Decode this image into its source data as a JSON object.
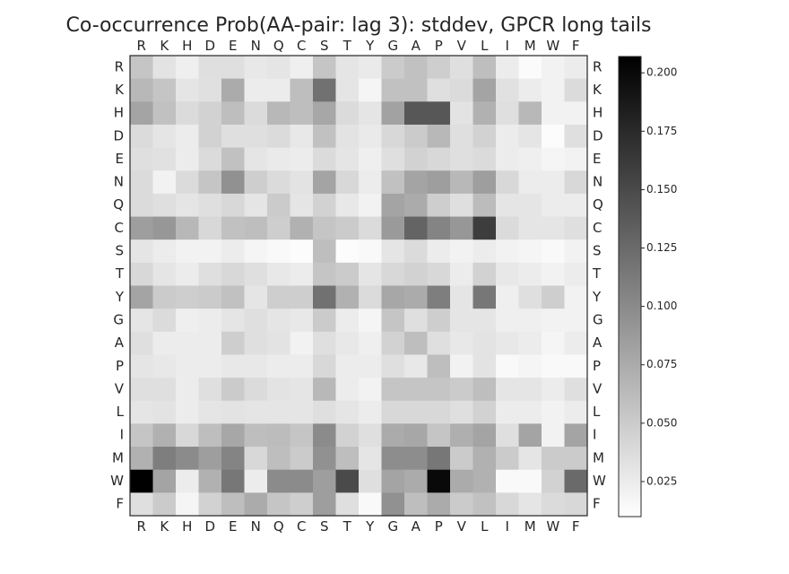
{
  "chart_data": {
    "type": "heatmap",
    "title": "Co-occurrence Prob(AA-pair: lag 3): stddev, GPCR long tails",
    "x_labels": [
      "R",
      "K",
      "H",
      "D",
      "E",
      "N",
      "Q",
      "C",
      "S",
      "T",
      "Y",
      "G",
      "A",
      "P",
      "V",
      "L",
      "I",
      "M",
      "W",
      "F"
    ],
    "y_labels": [
      "R",
      "K",
      "H",
      "D",
      "E",
      "N",
      "Q",
      "C",
      "S",
      "T",
      "Y",
      "G",
      "A",
      "P",
      "V",
      "L",
      "I",
      "M",
      "W",
      "F"
    ],
    "colorbar": {
      "min": 0.01,
      "max": 0.207,
      "ticks": [
        0.025,
        0.05,
        0.075,
        0.1,
        0.125,
        0.15,
        0.175,
        0.2
      ],
      "tick_labels": [
        "0.025",
        "0.050",
        "0.075",
        "0.100",
        "0.125",
        "0.150",
        "0.175",
        "0.200"
      ],
      "colormap": "greys"
    },
    "values": [
      [
        0.055,
        0.032,
        0.022,
        0.035,
        0.035,
        0.028,
        0.03,
        0.022,
        0.055,
        0.03,
        0.026,
        0.05,
        0.058,
        0.048,
        0.035,
        0.06,
        0.025,
        0.013,
        0.02,
        0.025
      ],
      [
        0.065,
        0.055,
        0.03,
        0.034,
        0.075,
        0.025,
        0.025,
        0.06,
        0.12,
        0.03,
        0.018,
        0.058,
        0.058,
        0.035,
        0.038,
        0.08,
        0.033,
        0.025,
        0.02,
        0.038
      ],
      [
        0.08,
        0.058,
        0.038,
        0.045,
        0.06,
        0.038,
        0.065,
        0.06,
        0.078,
        0.038,
        0.03,
        0.082,
        0.14,
        0.14,
        0.032,
        0.07,
        0.035,
        0.065,
        0.02,
        0.02
      ],
      [
        0.038,
        0.03,
        0.025,
        0.045,
        0.035,
        0.035,
        0.038,
        0.028,
        0.058,
        0.032,
        0.026,
        0.04,
        0.05,
        0.065,
        0.035,
        0.045,
        0.025,
        0.03,
        0.012,
        0.035
      ],
      [
        0.035,
        0.033,
        0.025,
        0.038,
        0.058,
        0.03,
        0.026,
        0.025,
        0.038,
        0.03,
        0.022,
        0.035,
        0.045,
        0.04,
        0.035,
        0.038,
        0.025,
        0.022,
        0.018,
        0.02
      ],
      [
        0.038,
        0.02,
        0.038,
        0.055,
        0.095,
        0.048,
        0.038,
        0.032,
        0.08,
        0.04,
        0.025,
        0.058,
        0.08,
        0.085,
        0.065,
        0.085,
        0.04,
        0.025,
        0.025,
        0.04
      ],
      [
        0.038,
        0.035,
        0.03,
        0.035,
        0.04,
        0.03,
        0.05,
        0.03,
        0.045,
        0.028,
        0.02,
        0.08,
        0.075,
        0.048,
        0.035,
        0.062,
        0.03,
        0.03,
        0.025,
        0.025
      ],
      [
        0.085,
        0.09,
        0.065,
        0.04,
        0.058,
        0.06,
        0.048,
        0.07,
        0.055,
        0.05,
        0.038,
        0.088,
        0.13,
        0.105,
        0.09,
        0.16,
        0.038,
        0.03,
        0.03,
        0.035
      ],
      [
        0.03,
        0.025,
        0.02,
        0.02,
        0.025,
        0.018,
        0.015,
        0.012,
        0.06,
        0.012,
        0.015,
        0.03,
        0.038,
        0.025,
        0.02,
        0.025,
        0.02,
        0.018,
        0.015,
        0.02
      ],
      [
        0.04,
        0.03,
        0.025,
        0.035,
        0.04,
        0.035,
        0.028,
        0.025,
        0.055,
        0.05,
        0.03,
        0.04,
        0.045,
        0.04,
        0.025,
        0.045,
        0.028,
        0.025,
        0.02,
        0.025
      ],
      [
        0.08,
        0.05,
        0.048,
        0.05,
        0.058,
        0.03,
        0.048,
        0.048,
        0.12,
        0.07,
        0.038,
        0.078,
        0.075,
        0.11,
        0.03,
        0.115,
        0.022,
        0.035,
        0.048,
        0.02
      ],
      [
        0.03,
        0.038,
        0.022,
        0.025,
        0.03,
        0.035,
        0.03,
        0.028,
        0.05,
        0.025,
        0.018,
        0.055,
        0.035,
        0.048,
        0.03,
        0.03,
        0.022,
        0.022,
        0.02,
        0.02
      ],
      [
        0.035,
        0.025,
        0.025,
        0.025,
        0.048,
        0.035,
        0.032,
        0.02,
        0.035,
        0.028,
        0.022,
        0.045,
        0.06,
        0.035,
        0.028,
        0.032,
        0.028,
        0.025,
        0.018,
        0.025
      ],
      [
        0.03,
        0.028,
        0.025,
        0.025,
        0.028,
        0.028,
        0.025,
        0.025,
        0.04,
        0.025,
        0.025,
        0.035,
        0.028,
        0.06,
        0.02,
        0.032,
        0.015,
        0.018,
        0.015,
        0.015
      ],
      [
        0.035,
        0.035,
        0.025,
        0.035,
        0.05,
        0.038,
        0.032,
        0.03,
        0.065,
        0.025,
        0.02,
        0.055,
        0.055,
        0.055,
        0.05,
        0.06,
        0.03,
        0.03,
        0.025,
        0.035
      ],
      [
        0.03,
        0.032,
        0.025,
        0.03,
        0.032,
        0.03,
        0.03,
        0.03,
        0.035,
        0.03,
        0.025,
        0.04,
        0.04,
        0.04,
        0.035,
        0.045,
        0.025,
        0.025,
        0.02,
        0.025
      ],
      [
        0.055,
        0.07,
        0.04,
        0.06,
        0.078,
        0.06,
        0.062,
        0.055,
        0.1,
        0.045,
        0.035,
        0.075,
        0.078,
        0.055,
        0.072,
        0.08,
        0.035,
        0.08,
        0.02,
        0.08
      ],
      [
        0.07,
        0.11,
        0.1,
        0.085,
        0.105,
        0.04,
        0.06,
        0.05,
        0.095,
        0.06,
        0.03,
        0.098,
        0.098,
        0.115,
        0.05,
        0.07,
        0.05,
        0.03,
        0.05,
        0.05
      ],
      [
        0.207,
        0.08,
        0.025,
        0.07,
        0.115,
        0.025,
        0.1,
        0.1,
        0.085,
        0.15,
        0.035,
        0.08,
        0.075,
        0.2,
        0.075,
        0.07,
        0.015,
        0.015,
        0.045,
        0.125
      ],
      [
        0.035,
        0.05,
        0.018,
        0.045,
        0.06,
        0.075,
        0.055,
        0.048,
        0.085,
        0.035,
        0.015,
        0.095,
        0.06,
        0.075,
        0.05,
        0.058,
        0.04,
        0.03,
        0.038,
        0.04
      ]
    ]
  }
}
